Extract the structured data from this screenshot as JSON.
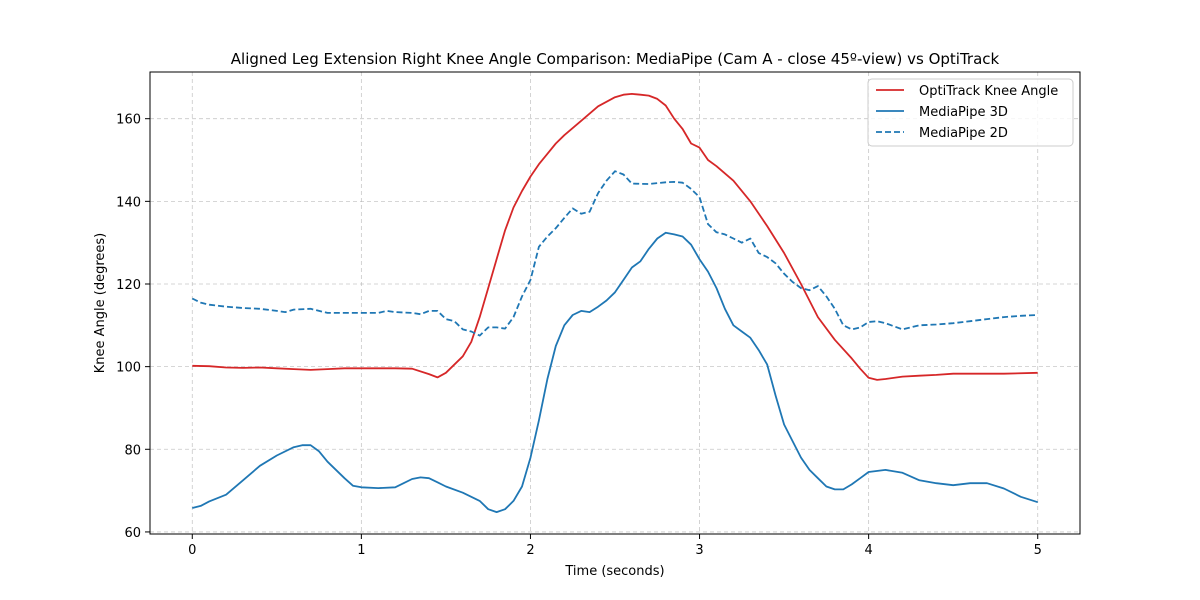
{
  "chart_data": {
    "type": "line",
    "title": "Aligned Leg Extension Right Knee Angle Comparison: MediaPipe (Cam A - close 45º-view) vs OptiTrack",
    "xlabel": "Time (seconds)",
    "ylabel": "Knee Angle (degrees)",
    "xlim": [
      -0.25,
      5.25
    ],
    "ylim": [
      59.5,
      171.3
    ],
    "xticks": [
      0,
      1,
      2,
      3,
      4,
      5
    ],
    "yticks": [
      60,
      80,
      100,
      120,
      140,
      160
    ],
    "grid": true,
    "legend_position": "top-right",
    "series": [
      {
        "name": "OptiTrack Knee Angle",
        "color": "#d62728",
        "dash": "solid",
        "points": [
          [
            0,
            100.2
          ],
          [
            0.1,
            100.1
          ],
          [
            0.2,
            99.8
          ],
          [
            0.3,
            99.7
          ],
          [
            0.4,
            99.8
          ],
          [
            0.5,
            99.6
          ],
          [
            0.6,
            99.4
          ],
          [
            0.7,
            99.2
          ],
          [
            0.8,
            99.4
          ],
          [
            0.9,
            99.6
          ],
          [
            1.0,
            99.6
          ],
          [
            1.1,
            99.6
          ],
          [
            1.2,
            99.6
          ],
          [
            1.3,
            99.5
          ],
          [
            1.4,
            98.2
          ],
          [
            1.45,
            97.4
          ],
          [
            1.5,
            98.5
          ],
          [
            1.6,
            102.5
          ],
          [
            1.65,
            106
          ],
          [
            1.7,
            112
          ],
          [
            1.75,
            119
          ],
          [
            1.8,
            126
          ],
          [
            1.85,
            133
          ],
          [
            1.9,
            138.5
          ],
          [
            1.95,
            142.5
          ],
          [
            2.0,
            146
          ],
          [
            2.05,
            149
          ],
          [
            2.1,
            151.5
          ],
          [
            2.15,
            154
          ],
          [
            2.2,
            156
          ],
          [
            2.3,
            159.5
          ],
          [
            2.4,
            163
          ],
          [
            2.5,
            165.2
          ],
          [
            2.55,
            165.8
          ],
          [
            2.6,
            166.0
          ],
          [
            2.65,
            165.8
          ],
          [
            2.7,
            165.6
          ],
          [
            2.75,
            164.8
          ],
          [
            2.8,
            163.2
          ],
          [
            2.85,
            160
          ],
          [
            2.9,
            157.5
          ],
          [
            2.95,
            154
          ],
          [
            3.0,
            153
          ],
          [
            3.05,
            150
          ],
          [
            3.1,
            148.5
          ],
          [
            3.2,
            145
          ],
          [
            3.3,
            140
          ],
          [
            3.4,
            134
          ],
          [
            3.5,
            127.5
          ],
          [
            3.6,
            120
          ],
          [
            3.7,
            112
          ],
          [
            3.8,
            106.5
          ],
          [
            3.9,
            102
          ],
          [
            3.95,
            99.5
          ],
          [
            4.0,
            97.3
          ],
          [
            4.05,
            96.8
          ],
          [
            4.1,
            97
          ],
          [
            4.2,
            97.6
          ],
          [
            4.3,
            97.8
          ],
          [
            4.4,
            98
          ],
          [
            4.5,
            98.3
          ],
          [
            4.6,
            98.3
          ],
          [
            4.8,
            98.3
          ],
          [
            5.0,
            98.5
          ]
        ]
      },
      {
        "name": "MediaPipe 3D",
        "color": "#1f77b4",
        "dash": "solid",
        "points": [
          [
            0,
            65.8
          ],
          [
            0.05,
            66.3
          ],
          [
            0.1,
            67.4
          ],
          [
            0.2,
            69
          ],
          [
            0.3,
            72.5
          ],
          [
            0.4,
            76
          ],
          [
            0.5,
            78.5
          ],
          [
            0.6,
            80.5
          ],
          [
            0.65,
            81
          ],
          [
            0.7,
            81
          ],
          [
            0.75,
            79.5
          ],
          [
            0.8,
            77
          ],
          [
            0.9,
            73
          ],
          [
            0.95,
            71.2
          ],
          [
            1.0,
            70.8
          ],
          [
            1.1,
            70.6
          ],
          [
            1.2,
            70.8
          ],
          [
            1.25,
            71.8
          ],
          [
            1.3,
            72.8
          ],
          [
            1.35,
            73.2
          ],
          [
            1.4,
            73
          ],
          [
            1.45,
            72
          ],
          [
            1.5,
            71
          ],
          [
            1.6,
            69.5
          ],
          [
            1.7,
            67.5
          ],
          [
            1.75,
            65.5
          ],
          [
            1.8,
            64.8
          ],
          [
            1.85,
            65.5
          ],
          [
            1.9,
            67.5
          ],
          [
            1.95,
            71
          ],
          [
            2.0,
            78
          ],
          [
            2.05,
            87
          ],
          [
            2.1,
            97
          ],
          [
            2.15,
            105
          ],
          [
            2.2,
            110
          ],
          [
            2.25,
            112.5
          ],
          [
            2.3,
            113.5
          ],
          [
            2.35,
            113.2
          ],
          [
            2.4,
            114.5
          ],
          [
            2.45,
            116
          ],
          [
            2.5,
            118
          ],
          [
            2.55,
            121
          ],
          [
            2.6,
            124
          ],
          [
            2.65,
            125.5
          ],
          [
            2.7,
            128.5
          ],
          [
            2.75,
            131
          ],
          [
            2.8,
            132.4
          ],
          [
            2.85,
            132
          ],
          [
            2.9,
            131.5
          ],
          [
            2.95,
            129.5
          ],
          [
            3.0,
            126
          ],
          [
            3.05,
            123
          ],
          [
            3.1,
            119
          ],
          [
            3.15,
            114
          ],
          [
            3.2,
            110
          ],
          [
            3.25,
            108.5
          ],
          [
            3.3,
            107
          ],
          [
            3.35,
            104
          ],
          [
            3.4,
            100.5
          ],
          [
            3.45,
            93
          ],
          [
            3.5,
            86
          ],
          [
            3.55,
            82
          ],
          [
            3.6,
            78
          ],
          [
            3.65,
            75
          ],
          [
            3.7,
            73
          ],
          [
            3.75,
            71
          ],
          [
            3.8,
            70.3
          ],
          [
            3.85,
            70.3
          ],
          [
            3.9,
            71.5
          ],
          [
            3.95,
            73
          ],
          [
            4.0,
            74.5
          ],
          [
            4.1,
            75
          ],
          [
            4.2,
            74.3
          ],
          [
            4.3,
            72.5
          ],
          [
            4.4,
            71.8
          ],
          [
            4.5,
            71.3
          ],
          [
            4.6,
            71.8
          ],
          [
            4.7,
            71.8
          ],
          [
            4.8,
            70.5
          ],
          [
            4.9,
            68.5
          ],
          [
            5.0,
            67.2
          ]
        ]
      },
      {
        "name": "MediaPipe 2D",
        "color": "#1f77b4",
        "dash": "dashed",
        "points": [
          [
            0,
            116.5
          ],
          [
            0.05,
            115.5
          ],
          [
            0.1,
            115
          ],
          [
            0.2,
            114.5
          ],
          [
            0.3,
            114.2
          ],
          [
            0.4,
            114
          ],
          [
            0.5,
            113.5
          ],
          [
            0.55,
            113.2
          ],
          [
            0.6,
            113.8
          ],
          [
            0.7,
            114
          ],
          [
            0.75,
            113.5
          ],
          [
            0.8,
            113
          ],
          [
            0.9,
            113
          ],
          [
            1.0,
            113
          ],
          [
            1.1,
            113
          ],
          [
            1.15,
            113.5
          ],
          [
            1.2,
            113.2
          ],
          [
            1.3,
            113
          ],
          [
            1.35,
            112.7
          ],
          [
            1.4,
            113.5
          ],
          [
            1.45,
            113.5
          ],
          [
            1.5,
            111.5
          ],
          [
            1.55,
            111
          ],
          [
            1.6,
            109
          ],
          [
            1.65,
            108.5
          ],
          [
            1.7,
            107.5
          ],
          [
            1.75,
            109.5
          ],
          [
            1.8,
            109.5
          ],
          [
            1.85,
            109.2
          ],
          [
            1.9,
            112
          ],
          [
            1.95,
            117
          ],
          [
            2.0,
            121
          ],
          [
            2.05,
            129
          ],
          [
            2.1,
            131.5
          ],
          [
            2.15,
            133.5
          ],
          [
            2.2,
            136
          ],
          [
            2.25,
            138.3
          ],
          [
            2.3,
            137
          ],
          [
            2.35,
            137.5
          ],
          [
            2.4,
            142
          ],
          [
            2.45,
            145
          ],
          [
            2.5,
            147.3
          ],
          [
            2.55,
            146.5
          ],
          [
            2.6,
            144.3
          ],
          [
            2.7,
            144.2
          ],
          [
            2.8,
            144.6
          ],
          [
            2.85,
            144.7
          ],
          [
            2.9,
            144.5
          ],
          [
            2.95,
            143
          ],
          [
            3.0,
            141
          ],
          [
            3.05,
            134.5
          ],
          [
            3.1,
            132.5
          ],
          [
            3.15,
            132
          ],
          [
            3.2,
            131
          ],
          [
            3.25,
            130
          ],
          [
            3.3,
            131
          ],
          [
            3.35,
            127.5
          ],
          [
            3.4,
            126.5
          ],
          [
            3.45,
            125
          ],
          [
            3.5,
            122.5
          ],
          [
            3.55,
            120.5
          ],
          [
            3.6,
            119
          ],
          [
            3.65,
            118.5
          ],
          [
            3.7,
            119.5
          ],
          [
            3.75,
            117
          ],
          [
            3.8,
            114
          ],
          [
            3.85,
            110
          ],
          [
            3.9,
            109
          ],
          [
            3.95,
            109.5
          ],
          [
            4.0,
            110.8
          ],
          [
            4.05,
            111
          ],
          [
            4.1,
            110.5
          ],
          [
            4.2,
            109
          ],
          [
            4.3,
            110
          ],
          [
            4.4,
            110.2
          ],
          [
            4.5,
            110.5
          ],
          [
            4.6,
            111
          ],
          [
            4.7,
            111.5
          ],
          [
            4.8,
            112
          ],
          [
            4.9,
            112.3
          ],
          [
            5.0,
            112.5
          ]
        ]
      }
    ]
  }
}
